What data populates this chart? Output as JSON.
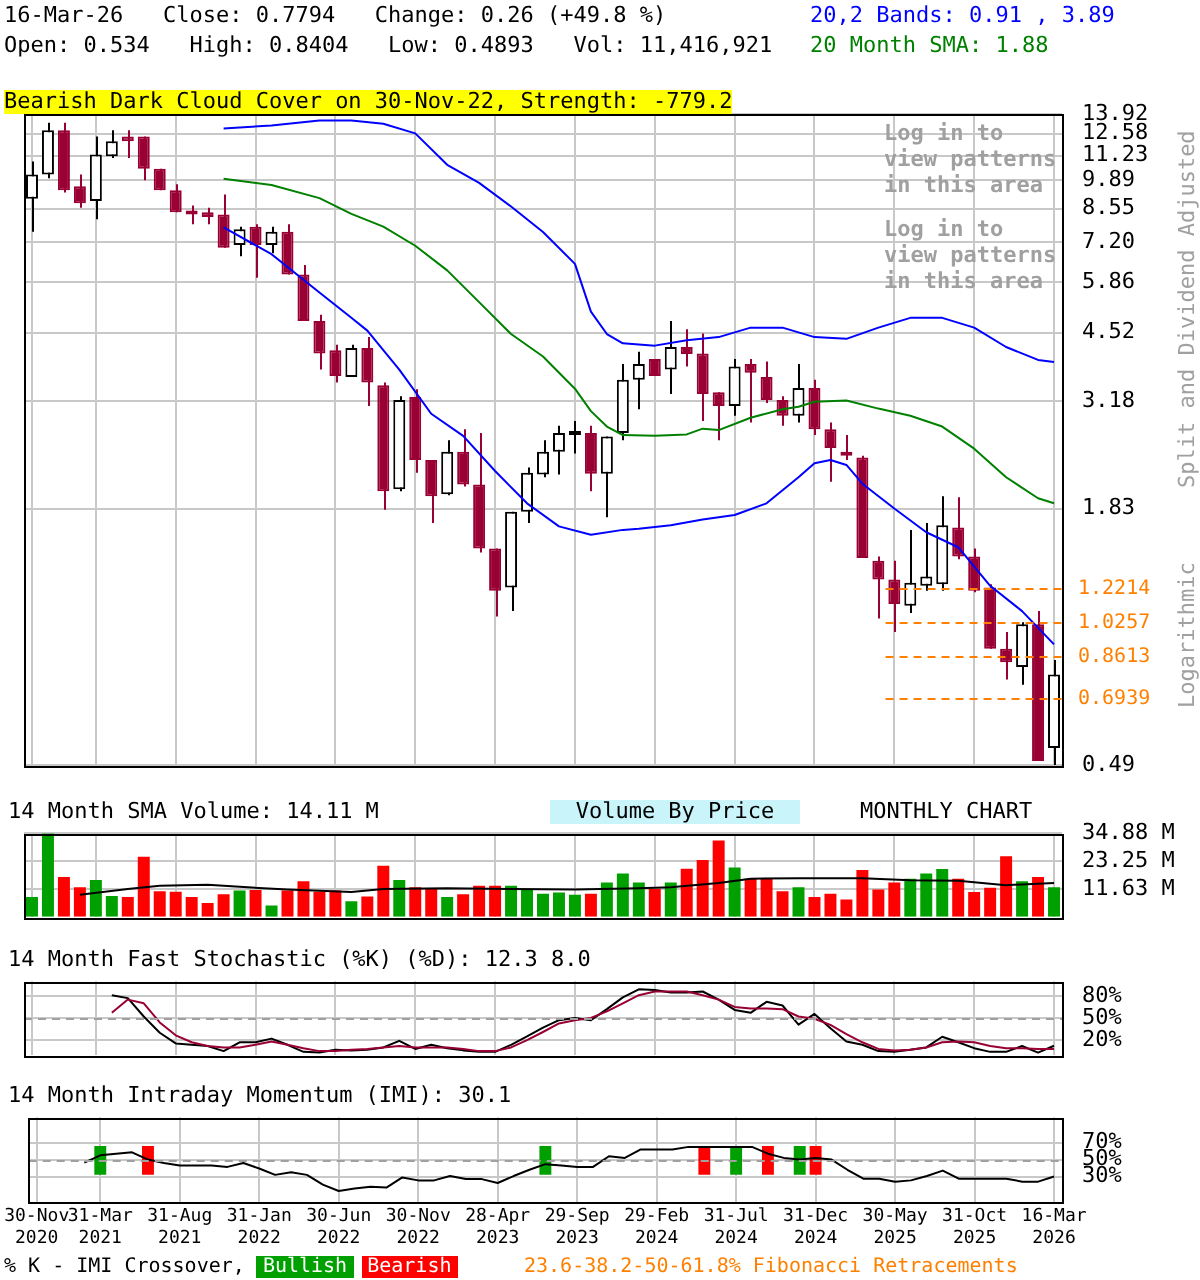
{
  "chart_data": [
    {
      "type": "candlestick",
      "colors": [
        "#000000",
        "#000000",
        "#990033",
        "#990033",
        "#000000",
        "#000000",
        "#990033",
        "#990033",
        "#990033",
        "#990033",
        "#990033",
        "#990033",
        "#990033",
        "#000000",
        "#990033",
        "#000000",
        "#990033",
        "#990033",
        "#990033",
        "#990033",
        "#000000",
        "#990033",
        "#990033",
        "#000000",
        "#990033",
        "#990033",
        "#000000",
        "#990033",
        "#990033",
        "#990033",
        "#000000",
        "#000000",
        "#000000",
        "#000000",
        "#000000",
        "#990033",
        "#000000",
        "#000000",
        "#000000",
        "#990033",
        "#000000",
        "#990033",
        "#990033",
        "#990033",
        "#000000",
        "#990033",
        "#990033",
        "#990033",
        "#000000",
        "#990033",
        "#990033",
        "#990033",
        "#990033",
        "#990033",
        "#990033",
        "#000000",
        "#000000",
        "#000000",
        "#990033",
        "#990033",
        "#990033",
        "#990033",
        "#000000",
        "#990033",
        "#000000"
      ],
      "log": true,
      "grid": true,
      "legend": "top right",
      "tick_labels": "y",
      "categories": [
        null,
        null,
        null,
        null,
        null,
        null,
        null,
        null,
        null,
        null,
        null,
        null,
        null,
        null,
        null,
        null,
        null,
        null,
        null,
        null,
        null,
        null,
        null,
        null,
        null,
        null,
        null,
        null,
        null,
        null,
        null,
        null,
        null,
        null,
        null,
        null,
        null,
        null,
        null,
        null,
        null,
        null,
        null,
        null,
        null,
        null,
        null,
        null,
        null,
        null,
        null,
        null,
        null,
        null,
        null,
        null,
        null,
        null,
        null,
        null,
        null,
        null,
        null,
        null,
        null
      ],
      "ohlc": [
        [
          9.0,
          10.9,
          7.6,
          10.2
        ],
        [
          10.2,
          13.3,
          10.0,
          12.8
        ],
        [
          12.8,
          13.3,
          9.3,
          9.4
        ],
        [
          9.6,
          10.2,
          8.6,
          8.8
        ],
        [
          8.9,
          12.4,
          8.1,
          11.3
        ],
        [
          11.2,
          12.8,
          11.1,
          12.1
        ],
        [
          12.4,
          12.8,
          11.1,
          12.1
        ],
        [
          12.4,
          12.4,
          9.9,
          10.5
        ],
        [
          10.5,
          10.5,
          9.4,
          9.4
        ],
        [
          9.4,
          9.7,
          8.4,
          8.4
        ],
        [
          8.4,
          8.7,
          7.9,
          8.3
        ],
        [
          8.4,
          8.6,
          7.9,
          8.2
        ],
        [
          8.3,
          9.2,
          7.0,
          7.0
        ],
        [
          7.1,
          7.8,
          6.7,
          7.7
        ],
        [
          7.8,
          7.9,
          6.0,
          7.1
        ],
        [
          7.1,
          7.8,
          6.8,
          7.6
        ],
        [
          7.6,
          7.9,
          6.1,
          6.1
        ],
        [
          6.1,
          6.4,
          4.8,
          4.8
        ],
        [
          4.8,
          4.96,
          3.74,
          4.06
        ],
        [
          4.13,
          4.25,
          3.5,
          3.62
        ],
        [
          3.6,
          4.25,
          3.6,
          4.18
        ],
        [
          4.18,
          4.42,
          3.1,
          3.5
        ],
        [
          3.45,
          3.5,
          1.82,
          2.0
        ],
        [
          2.02,
          3.26,
          2.0,
          3.2
        ],
        [
          3.25,
          3.38,
          2.2,
          2.35
        ],
        [
          2.35,
          2.35,
          1.7,
          1.95
        ],
        [
          1.97,
          2.6,
          1.96,
          2.45
        ],
        [
          2.45,
          2.75,
          2.05,
          2.07
        ],
        [
          2.07,
          2.7,
          1.46,
          1.49
        ],
        [
          1.49,
          1.49,
          1.05,
          1.2
        ],
        [
          1.22,
          1.8,
          1.08,
          1.8
        ],
        [
          1.8,
          2.26,
          1.7,
          2.2
        ],
        [
          2.18,
          2.6,
          2.15,
          2.45
        ],
        [
          2.45,
          2.8,
          2.18,
          2.7
        ],
        [
          2.67,
          2.87,
          2.43,
          2.7
        ],
        [
          2.7,
          2.8,
          2.0,
          2.19
        ],
        [
          2.19,
          2.65,
          1.75,
          2.65
        ],
        [
          2.7,
          3.85,
          2.6,
          3.55
        ],
        [
          3.55,
          4.1,
          3.05,
          3.85
        ],
        [
          3.95,
          3.95,
          3.62,
          3.62
        ],
        [
          3.74,
          4.8,
          3.3,
          4.2
        ],
        [
          4.2,
          4.6,
          3.8,
          4.05
        ],
        [
          4.06,
          4.5,
          2.87,
          3.3
        ],
        [
          3.33,
          3.33,
          2.6,
          3.1
        ],
        [
          3.1,
          3.95,
          2.95,
          3.8
        ],
        [
          3.85,
          3.95,
          2.85,
          3.68
        ],
        [
          3.6,
          3.9,
          3.15,
          3.2
        ],
        [
          3.2,
          3.26,
          2.8,
          2.95
        ],
        [
          2.95,
          3.85,
          2.85,
          3.4
        ],
        [
          3.4,
          3.55,
          2.67,
          2.75
        ],
        [
          2.75,
          2.85,
          2.1,
          2.5
        ],
        [
          2.45,
          2.67,
          2.35,
          2.4
        ],
        [
          2.38,
          2.4,
          1.42,
          1.42
        ],
        [
          1.4,
          1.43,
          1.04,
          1.27
        ],
        [
          1.27,
          1.4,
          0.97,
          1.12
        ],
        [
          1.11,
          1.64,
          1.07,
          1.25
        ],
        [
          1.23,
          1.7,
          1.2,
          1.29
        ],
        [
          1.24,
          1.95,
          1.2,
          1.68
        ],
        [
          1.66,
          1.94,
          1.41,
          1.43
        ],
        [
          1.43,
          1.49,
          1.19,
          1.2
        ],
        [
          1.22,
          1.24,
          0.89,
          0.89
        ],
        [
          0.89,
          0.97,
          0.76,
          0.83
        ],
        [
          0.81,
          1.02,
          0.74,
          1.01
        ],
        [
          1.01,
          1.08,
          0.5,
          0.5
        ],
        [
          0.534,
          0.8404,
          0.4893,
          0.7794
        ]
      ],
      "series": [
        {
          "type": "line",
          "name": "20,2 Bands: 0.91 , 3.89",
          "color": "#0000ff",
          "values": [
            null,
            null,
            null,
            null,
            null,
            null,
            null,
            null,
            null,
            null,
            null,
            null,
            12.92,
            null,
            null,
            13.12,
            null,
            null,
            13.47,
            null,
            13.47,
            null,
            13.24,
            null,
            12.6,
            null,
            10.72,
            null,
            9.77,
            null,
            8.65,
            null,
            7.59,
            null,
            6.44,
            5.04,
            4.49,
            4.28,
            null,
            4.23,
            null,
            4.35,
            null,
            4.42,
            null,
            4.64,
            null,
            4.64,
            null,
            4.42,
            null,
            4.38,
            null,
            4.64,
            null,
            4.88,
            null,
            4.88,
            null,
            4.64,
            null,
            4.2,
            null,
            3.93,
            3.89
          ]
        },
        {
          "type": "line",
          "color": "#0000ff",
          "values": [
            null,
            null,
            null,
            null,
            null,
            null,
            null,
            null,
            null,
            null,
            null,
            null,
            7.77,
            null,
            null,
            6.77,
            null,
            null,
            5.56,
            null,
            4.88,
            4.57,
            null,
            3.74,
            null,
            2.98,
            null,
            2.66,
            null,
            2.22,
            null,
            1.88,
            null,
            1.67,
            null,
            1.6,
            null,
            1.64,
            1.65,
            null,
            1.68,
            null,
            1.73,
            null,
            1.77,
            null,
            1.88,
            null,
            2.15,
            2.31,
            2.35,
            2.29,
            2.08,
            null,
            1.83,
            null,
            1.62,
            null,
            1.5,
            null,
            1.23,
            null,
            1.08,
            null,
            0.91
          ]
        },
        {
          "type": "line",
          "name": "20 Month SMA: 1.88",
          "color": "#008000",
          "values": [
            null,
            null,
            null,
            null,
            null,
            null,
            null,
            null,
            null,
            null,
            null,
            null,
            9.98,
            null,
            null,
            9.66,
            null,
            null,
            9.03,
            null,
            8.33,
            null,
            7.8,
            null,
            7.07,
            null,
            6.23,
            null,
            5.29,
            null,
            4.49,
            null,
            4.0,
            null,
            3.39,
            3.02,
            2.79,
            2.67,
            null,
            2.66,
            null,
            2.68,
            2.76,
            2.74,
            null,
            2.92,
            null,
            3.05,
            3.09,
            3.17,
            null,
            3.19,
            null,
            3.06,
            null,
            2.95,
            null,
            2.79,
            null,
            2.49,
            null,
            2.15,
            null,
            1.93,
            1.88
          ]
        }
      ],
      "ylim": [
        0.485,
        13.92
      ],
      "yticks": [
        0.49,
        1.83,
        3.18,
        4.52,
        5.86,
        {
          "value": 7.2,
          "label": "7.20"
        },
        8.55,
        9.89,
        11.23,
        12.58,
        13.92
      ],
      "ref_lines": [
        {
          "axis": "y",
          "value": 1.2214,
          "label": "1.2214",
          "color": "#ff8000",
          "line_style": "dashed"
        },
        {
          "axis": "y",
          "value": 1.0257,
          "label": "1.0257",
          "color": "#ff8000",
          "line_style": "dashed"
        },
        {
          "axis": "y",
          "value": 0.8613,
          "label": "0.8613",
          "color": "#ff8000",
          "line_style": "dashed"
        },
        {
          "axis": "y",
          "value": 0.6939,
          "label": "0.6939",
          "color": "#ff8000",
          "line_style": "dashed"
        }
      ],
      "annotations": [
        "16-Mar-26   Close: 0.7794   Change: 0.26 (+49.8 %)",
        "Open: 0.534   High: 0.8404   Low: 0.4893   Vol: 11,416,921",
        "Bearish Dark Cloud Cover on 30-Nov-22, Strength: -779.2",
        "Log in to view patterns in this area",
        "Log in to view patterns in this area",
        "Volume By Price",
        "MONTHLY CHART",
        "Split and Dividend Adjusted",
        "Logarithmic",
        "23.6-38.2-50-61.8% Fibonacci Retracements"
      ]
    },
    {
      "type": "bar",
      "title": "14 Month SMA Volume: 14.11 M",
      "grid": true,
      "tick_labels": "y",
      "categories": [
        null,
        null,
        null,
        null,
        null,
        null,
        null,
        null,
        null,
        null,
        null,
        null,
        null,
        null,
        null,
        null,
        null,
        null,
        null,
        null,
        null,
        null,
        null,
        null,
        null,
        null,
        null,
        null,
        null,
        null,
        null,
        null,
        null,
        null,
        null,
        null,
        null,
        null,
        null,
        null,
        null,
        null,
        null,
        null,
        null,
        null,
        null,
        null,
        null,
        null,
        null,
        null,
        null,
        null,
        null,
        null,
        null,
        null,
        null,
        null,
        null,
        null,
        null,
        null,
        null
      ],
      "series": [
        {
          "values": [
            8.3,
            34.8,
            16.6,
            12.3,
            15.4,
            8.7,
            8.3,
            25.1,
            10.7,
            10.5,
            8.3,
            5.8,
            9.4,
            11.0,
            11.2,
            4.7,
            11.0,
            14.8,
            10.5,
            11.0,
            6.5,
            8.5,
            21.3,
            15.4,
            12.3,
            11.9,
            8.3,
            9.4,
            13.0,
            13.0,
            13.0,
            11.6,
            9.6,
            10.1,
            9.2,
            9.6,
            14.3,
            18.1,
            14.3,
            11.6,
            14.3,
            20.1,
            23.7,
            31.8,
            20.6,
            15.9,
            16.1,
            10.7,
            12.3,
            8.3,
            9.6,
            7.2,
            19.5,
            11.4,
            14.3,
            15.9,
            18.1,
            19.9,
            15.9,
            10.3,
            12.1,
            25.3,
            14.8,
            16.6,
            12.3
          ],
          "colors": [
            "#00a000",
            "#00a000",
            "#ff0000",
            "#ff0000",
            "#00a000",
            "#00a000",
            "#ff0000",
            "#ff0000",
            "#ff0000",
            "#ff0000",
            "#ff0000",
            "#ff0000",
            "#ff0000",
            "#00a000",
            "#ff0000",
            "#00a000",
            "#ff0000",
            "#ff0000",
            "#ff0000",
            "#ff0000",
            "#00a000",
            "#ff0000",
            "#ff0000",
            "#00a000",
            "#ff0000",
            "#ff0000",
            "#00a000",
            "#ff0000",
            "#ff0000",
            "#ff0000",
            "#00a000",
            "#00a000",
            "#00a000",
            "#00a000",
            "#00a000",
            "#ff0000",
            "#00a000",
            "#00a000",
            "#00a000",
            "#ff0000",
            "#00a000",
            "#ff0000",
            "#ff0000",
            "#ff0000",
            "#00a000",
            "#ff0000",
            "#ff0000",
            "#ff0000",
            "#00a000",
            "#ff0000",
            "#ff0000",
            "#ff0000",
            "#ff0000",
            "#ff0000",
            "#ff0000",
            "#00a000",
            "#00a000",
            "#00a000",
            "#ff0000",
            "#ff0000",
            "#ff0000",
            "#ff0000",
            "#00a000",
            "#ff0000",
            "#00a000"
          ]
        },
        {
          "type": "line",
          "color": "#000000",
          "values": [
            null,
            null,
            null,
            9.2,
            null,
            null,
            11.6,
            null,
            13.0,
            null,
            null,
            13.4,
            null,
            12.5,
            null,
            null,
            11.4,
            null,
            null,
            null,
            10.3,
            null,
            11.6,
            null,
            null,
            null,
            11.9,
            null,
            null,
            null,
            11.6,
            null,
            null,
            null,
            11.4,
            null,
            null,
            null,
            11.9,
            null,
            12.3,
            null,
            null,
            14.1,
            null,
            15.9,
            null,
            null,
            16.1,
            null,
            null,
            null,
            16.1,
            null,
            null,
            15.2,
            null,
            null,
            15.0,
            null,
            null,
            13.2,
            null,
            null,
            14.11
          ]
        }
      ],
      "ylim": [
        0,
        34.88
      ],
      "yticks": [
        {
          "value": 11.63,
          "label": "11.63 M"
        },
        {
          "value": 23.25,
          "label": "23.25 M"
        },
        {
          "value": 34.88,
          "label": "34.88 M"
        }
      ]
    },
    {
      "type": "line",
      "title": "14 Month Fast Stochastic (%K) (%D): 12.3 8.0",
      "grid": true,
      "tick_labels": "y",
      "categories": [
        null,
        null,
        null,
        null,
        null,
        null,
        null,
        null,
        null,
        null,
        null,
        null,
        null,
        null,
        null,
        null,
        null,
        null,
        null,
        null,
        null,
        null,
        null,
        null,
        null,
        null,
        null,
        null,
        null,
        null,
        null,
        null,
        null,
        null,
        null,
        null,
        null,
        null,
        null,
        null,
        null,
        null,
        null,
        null,
        null,
        null,
        null,
        null,
        null,
        null,
        null,
        null,
        null,
        null,
        null,
        null,
        null,
        null,
        null,
        null,
        null,
        null,
        null,
        null,
        null
      ],
      "series": [
        {
          "color": "#990033",
          "values": [
            null,
            null,
            null,
            null,
            null,
            57,
            75,
            70,
            44,
            26.5,
            17,
            12,
            10,
            10,
            13.6,
            18,
            13.6,
            9,
            5,
            5,
            7,
            8,
            10,
            12,
            10,
            10,
            10,
            8,
            5,
            5,
            10,
            20,
            31,
            42.6,
            47,
            50,
            59,
            70,
            81,
            86,
            86,
            86,
            81,
            75,
            65,
            63,
            63,
            62,
            52,
            49,
            40.6,
            28,
            17,
            8,
            6,
            7,
            10,
            17,
            18,
            17,
            12,
            9,
            9,
            8,
            8.0
          ]
        },
        {
          "color": "#000000",
          "values": [
            null,
            null,
            null,
            null,
            null,
            81,
            77,
            52,
            30,
            15.5,
            13.6,
            12,
            5,
            17,
            17,
            22,
            13.6,
            4,
            3,
            7,
            6,
            7,
            10,
            19,
            8,
            13.6,
            9,
            6,
            4,
            4,
            13.6,
            25,
            37,
            47,
            50,
            47,
            62,
            78,
            89,
            88,
            84.5,
            84.5,
            86,
            75,
            61,
            57,
            72,
            67,
            41,
            55.5,
            36,
            18,
            13.6,
            5,
            4,
            7,
            10,
            24.5,
            17,
            9,
            4,
            4,
            12,
            3,
            12.3
          ]
        }
      ],
      "ylim": [
        0,
        100
      ],
      "yticks": [
        {
          "value": 20,
          "label": "20%"
        },
        {
          "value": 50,
          "label": "50%"
        },
        {
          "value": 80,
          "label": "80%"
        }
      ],
      "ref_lines": [
        {
          "axis": "y",
          "value": 50,
          "color": "#a0a0a0",
          "line_style": "dashed"
        }
      ]
    },
    {
      "type": "line",
      "title": "14 Month Intraday Momentum (IMI): 30.1",
      "grid": true,
      "legend": "bottom",
      "legend_title": "% K - IMI Crossover,",
      "categories": [
        "30-Nov 2020",
        null,
        null,
        null,
        "31-Mar 2021",
        null,
        null,
        null,
        null,
        "31-Aug 2021",
        null,
        null,
        null,
        null,
        "31-Jan 2022",
        null,
        null,
        null,
        null,
        "30-Jun 2022",
        null,
        null,
        null,
        null,
        "30-Nov 2022",
        null,
        null,
        null,
        null,
        "28-Apr 2023",
        null,
        null,
        null,
        null,
        "29-Sep 2023",
        null,
        null,
        null,
        null,
        "29-Feb 2024",
        null,
        null,
        null,
        null,
        "31-Jul 2024",
        null,
        null,
        null,
        null,
        "31-Dec 2024",
        null,
        null,
        null,
        null,
        "30-May 2025",
        null,
        null,
        null,
        null,
        "31-Oct 2025",
        null,
        null,
        null,
        null,
        "16-Mar 2026"
      ],
      "series": [
        {
          "type": "bar",
          "name": "Bullish",
          "color": "#00a000",
          "base": [
            null,
            null,
            null,
            null,
            32,
            null,
            null,
            null,
            null,
            null,
            null,
            null,
            null,
            null,
            null,
            null,
            null,
            null,
            null,
            null,
            null,
            null,
            null,
            null,
            null,
            null,
            null,
            null,
            null,
            null,
            null,
            null,
            32,
            null,
            null,
            null,
            null,
            null,
            null,
            null,
            null,
            null,
            null,
            null,
            32,
            null,
            null,
            null,
            32,
            null,
            null,
            null,
            null,
            null,
            null,
            null,
            null,
            null,
            null,
            null,
            null,
            null,
            null,
            null,
            null
          ],
          "values": [
            null,
            null,
            null,
            null,
            34,
            null,
            null,
            null,
            null,
            null,
            null,
            null,
            null,
            null,
            null,
            null,
            null,
            null,
            null,
            null,
            null,
            null,
            null,
            null,
            null,
            null,
            null,
            null,
            null,
            null,
            null,
            null,
            34,
            null,
            null,
            null,
            null,
            null,
            null,
            null,
            null,
            null,
            null,
            null,
            34,
            null,
            null,
            null,
            34,
            null,
            null,
            null,
            null,
            null,
            null,
            null,
            null,
            null,
            null,
            null,
            null,
            null,
            null,
            null,
            null
          ]
        },
        {
          "type": "bar",
          "name": "Bearish",
          "color": "#ff0000",
          "base": [
            null,
            null,
            null,
            null,
            null,
            null,
            null,
            32,
            null,
            null,
            null,
            null,
            null,
            null,
            null,
            null,
            null,
            null,
            null,
            null,
            null,
            null,
            null,
            null,
            null,
            null,
            null,
            null,
            null,
            null,
            null,
            null,
            null,
            null,
            null,
            null,
            null,
            null,
            null,
            null,
            null,
            null,
            32,
            null,
            null,
            null,
            32,
            null,
            null,
            32,
            null,
            null,
            null,
            null,
            null,
            null,
            null,
            null,
            null,
            null,
            null,
            null,
            null,
            null,
            null
          ],
          "values": [
            null,
            null,
            null,
            null,
            null,
            null,
            null,
            34,
            null,
            null,
            null,
            null,
            null,
            null,
            null,
            null,
            null,
            null,
            null,
            null,
            null,
            null,
            null,
            null,
            null,
            null,
            null,
            null,
            null,
            null,
            null,
            null,
            null,
            null,
            null,
            null,
            null,
            null,
            null,
            null,
            null,
            null,
            34,
            null,
            null,
            null,
            34,
            null,
            null,
            34,
            null,
            null,
            null,
            null,
            null,
            null,
            null,
            null,
            null,
            null,
            null,
            null,
            null,
            null,
            null
          ]
        },
        {
          "color": "#000000",
          "values": [
            null,
            null,
            null,
            46.5,
            55,
            57,
            58.6,
            50,
            46,
            43,
            43,
            43,
            41.4,
            46,
            39.5,
            32,
            35,
            32,
            20.5,
            13,
            16,
            18,
            17,
            29,
            25.5,
            25.5,
            30.6,
            27,
            27,
            22.4,
            30.6,
            38,
            44.6,
            43,
            41.4,
            41.4,
            54,
            52,
            62,
            62,
            62,
            65,
            65,
            65,
            65,
            65,
            57,
            52,
            50,
            52,
            50,
            38,
            27.5,
            27.5,
            24,
            25.5,
            30.6,
            37,
            27.5,
            27.5,
            27.5,
            27.5,
            24,
            24,
            30.1
          ]
        }
      ],
      "ylim": [
        0,
        100
      ],
      "yticks": [
        {
          "value": 30,
          "label": "30%"
        },
        {
          "value": 50,
          "label": "50%"
        },
        {
          "value": 70,
          "label": "70%"
        }
      ],
      "ref_lines": [
        {
          "axis": "y",
          "value": 50,
          "color": "#a0a0a0",
          "line_style": "dashed"
        }
      ]
    }
  ]
}
